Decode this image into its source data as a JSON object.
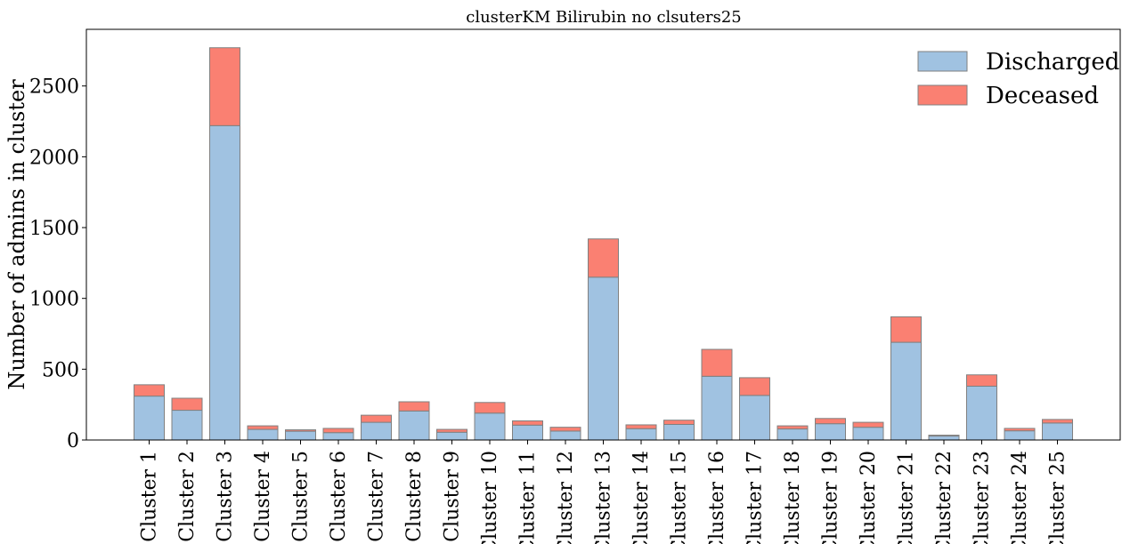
{
  "chart_data": {
    "type": "bar",
    "stacked": true,
    "title": "clusterKM Bilirubin no clsuters25",
    "xlabel": "",
    "ylabel": "Number of admins in cluster",
    "ylim": [
      0,
      2900
    ],
    "yticks": [
      0,
      500,
      1000,
      1500,
      2000,
      2500
    ],
    "grid": false,
    "legend_position": "top-right",
    "categories": [
      "Cluster 1",
      "Cluster 2",
      "Cluster 3",
      "Cluster 4",
      "Cluster 5",
      "Cluster 6",
      "Cluster 7",
      "Cluster 8",
      "Cluster 9",
      "Cluster 10",
      "Cluster 11",
      "Cluster 12",
      "Cluster 13",
      "Cluster 14",
      "Cluster 15",
      "Cluster 16",
      "Cluster 17",
      "Cluster 18",
      "Cluster 19",
      "Cluster 20",
      "Cluster 21",
      "Cluster 22",
      "Cluster 23",
      "Cluster 24",
      "Cluster 25"
    ],
    "series": [
      {
        "name": "Discharged",
        "color": "#a0c2e1",
        "values": [
          310,
          210,
          2220,
          75,
          62,
          52,
          125,
          205,
          55,
          190,
          105,
          63,
          1150,
          80,
          110,
          450,
          315,
          78,
          115,
          90,
          690,
          28,
          380,
          65,
          120
        ]
      },
      {
        "name": "Deceased",
        "color": "#fa8072",
        "values": [
          80,
          85,
          550,
          25,
          10,
          30,
          50,
          65,
          20,
          75,
          30,
          27,
          270,
          27,
          30,
          190,
          125,
          22,
          37,
          35,
          180,
          6,
          80,
          17,
          25
        ]
      }
    ]
  }
}
